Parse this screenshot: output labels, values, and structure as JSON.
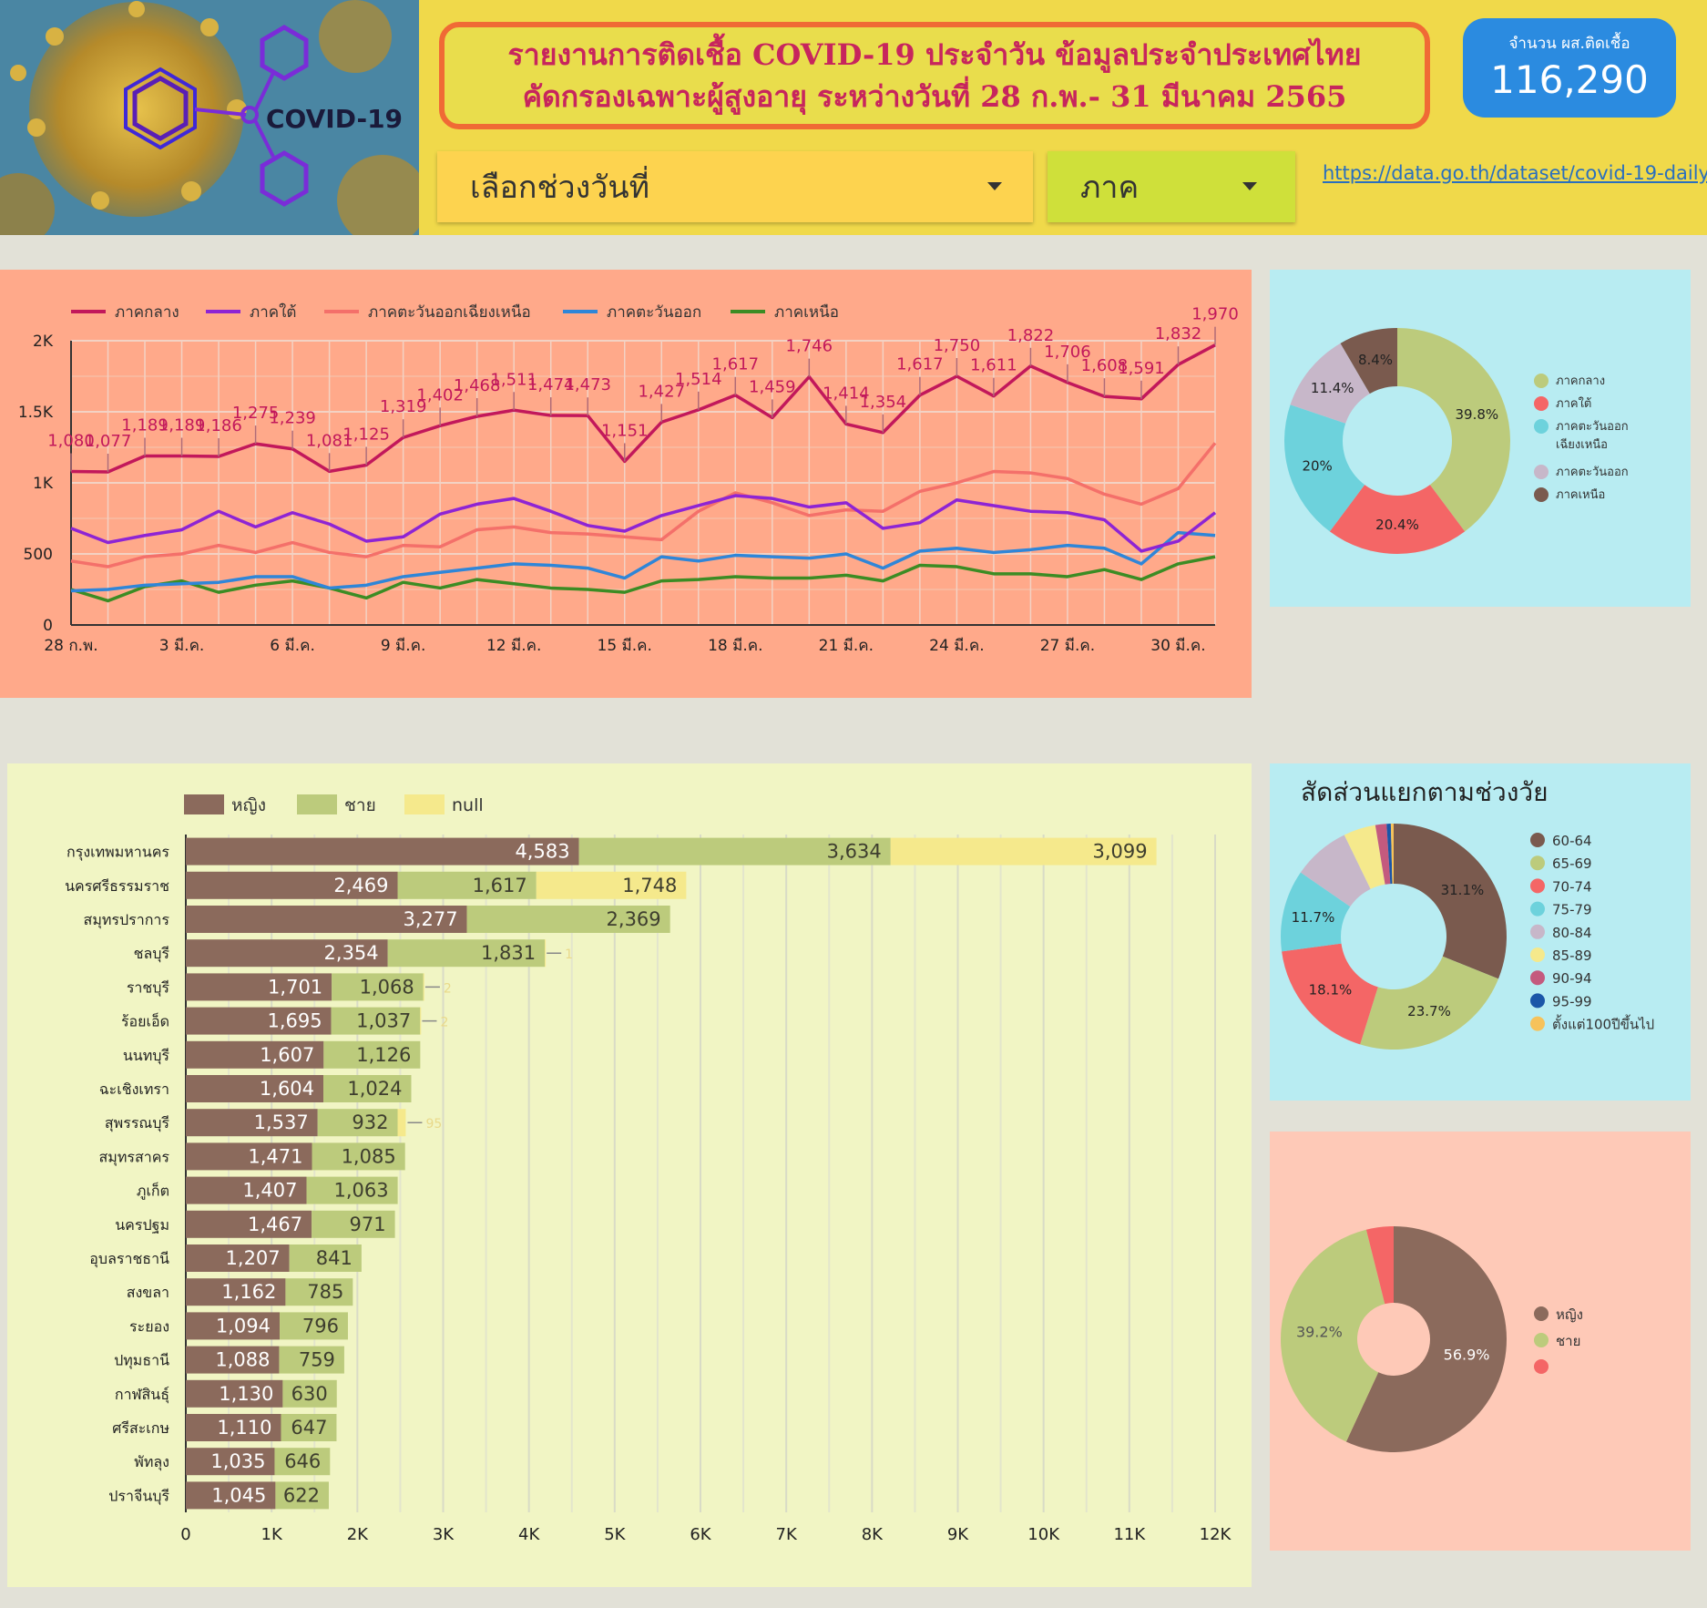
{
  "header": {
    "logo_text": "COVID-19",
    "title_line1": "รายงานการติดเชื้อ COVID-19 ประจำวัน ข้อมูลประจำประเทศไทย",
    "title_line2": "คัดกรองเฉพาะผู้สูงอายุ ระหว่างวันที่ 28 ก.พ.- 31 มีนาคม 2565",
    "count_label": "จำนวน ผส.ติดเชื้อ",
    "count_value": "116,290",
    "date_dropdown": "เลือกช่วงวันที่",
    "region_dropdown": "ภาค",
    "link": "https://data.go.th/dataset/covid-19-daily"
  },
  "colors": {
    "central": "#c2185b",
    "south": "#8e24d4",
    "northeast": "#f4706a",
    "east": "#2f86d8",
    "north": "#3c8c24",
    "female": "#8b6a5c",
    "male": "#bccb7c",
    "null": "#f5e98c"
  },
  "line_chart": {
    "type": "line",
    "legend": [
      "ภาคกลาง",
      "ภาคใต้",
      "ภาคตะวันออกเฉียงเหนือ",
      "ภาคตะวันออก",
      "ภาคเหนือ"
    ],
    "y_ticks": [
      "0",
      "500",
      "1K",
      "1.5K",
      "2K"
    ],
    "ylim": [
      0,
      2000
    ],
    "x_ticks": [
      "28 ก.พ.",
      "3 มี.ค.",
      "6 มี.ค.",
      "9 มี.ค.",
      "12 มี.ค.",
      "15 มี.ค.",
      "18 มี.ค.",
      "21 มี.ค.",
      "24 มี.ค.",
      "27 มี.ค.",
      "30 มี.ค."
    ],
    "series": [
      {
        "name": "ภาคกลาง",
        "values": [
          1080,
          1077,
          1189,
          1189,
          1186,
          1275,
          1239,
          1081,
          1125,
          1319,
          1402,
          1468,
          1511,
          1474,
          1473,
          1151,
          1427,
          1514,
          1617,
          1459,
          1746,
          1414,
          1354,
          1617,
          1750,
          1611,
          1822,
          1706,
          1608,
          1591,
          1832,
          1970
        ]
      },
      {
        "name": "ภาคใต้",
        "values": [
          680,
          580,
          630,
          670,
          800,
          690,
          790,
          710,
          590,
          620,
          780,
          850,
          890,
          800,
          700,
          660,
          770,
          840,
          910,
          890,
          830,
          860,
          680,
          720,
          880,
          840,
          800,
          790,
          740,
          520,
          590,
          790
        ]
      },
      {
        "name": "ภาคตะวันออกเฉียงเหนือ",
        "values": [
          450,
          410,
          480,
          500,
          560,
          510,
          580,
          510,
          480,
          560,
          550,
          670,
          690,
          650,
          640,
          620,
          600,
          800,
          930,
          860,
          770,
          810,
          800,
          940,
          1000,
          1080,
          1070,
          1030,
          920,
          850,
          960,
          1280
        ]
      },
      {
        "name": "ภาคตะวันออก",
        "values": [
          240,
          250,
          280,
          290,
          300,
          340,
          340,
          260,
          280,
          340,
          370,
          400,
          430,
          420,
          400,
          330,
          480,
          450,
          490,
          480,
          470,
          500,
          400,
          520,
          540,
          510,
          530,
          560,
          540,
          430,
          650,
          630
        ]
      },
      {
        "name": "ภาคเหนือ",
        "values": [
          250,
          170,
          270,
          310,
          230,
          280,
          310,
          260,
          190,
          300,
          260,
          320,
          290,
          260,
          250,
          230,
          310,
          320,
          340,
          330,
          330,
          350,
          310,
          420,
          410,
          360,
          360,
          340,
          390,
          320,
          430,
          480
        ]
      }
    ]
  },
  "region_pie": {
    "type": "pie",
    "labels": [
      "ภาคกลาง",
      "ภาคใต้",
      "ภาคตะวันออกเฉียงเหนือ",
      "ภาคตะวันออก",
      "ภาคเหนือ"
    ],
    "values": [
      39.8,
      20.4,
      20.0,
      11.4,
      8.4
    ],
    "pct_labels": [
      "39.8%",
      "20.4%",
      "20%",
      "11.4%",
      "8.4%"
    ],
    "colors": [
      "#bccb7c",
      "#f46666",
      "#6dd2dc",
      "#c7b7c9",
      "#7a5a4e"
    ]
  },
  "bar_chart": {
    "type": "bar",
    "legend": [
      "หญิง",
      "ชาย",
      "null"
    ],
    "x_ticks": [
      "0",
      "1K",
      "2K",
      "3K",
      "4K",
      "5K",
      "6K",
      "7K",
      "8K",
      "9K",
      "10K",
      "11K",
      "12K"
    ],
    "xlim": [
      0,
      12000
    ],
    "categories": [
      "กรุงเทพมหานคร",
      "นครศรีธรรมราช",
      "สมุทรปราการ",
      "ชลบุรี",
      "ราชบุรี",
      "ร้อยเอ็ด",
      "นนทบุรี",
      "ฉะเชิงเทรา",
      "สุพรรณบุรี",
      "สมุทรสาคร",
      "ภูเก็ต",
      "นครปฐม",
      "อุบลราชธานี",
      "สงขลา",
      "ระยอง",
      "ปทุมธานี",
      "กาฬสินธุ์",
      "ศรีสะเกษ",
      "พัทลุง",
      "ปราจีนบุรี"
    ],
    "series": [
      {
        "name": "หญิง",
        "values": [
          4583,
          2469,
          3277,
          2354,
          1701,
          1695,
          1607,
          1604,
          1537,
          1471,
          1407,
          1467,
          1207,
          1162,
          1094,
          1088,
          1130,
          1110,
          1035,
          1045
        ]
      },
      {
        "name": "ชาย",
        "values": [
          3634,
          1617,
          2369,
          1831,
          1068,
          1037,
          1126,
          1024,
          932,
          1085,
          1063,
          971,
          841,
          785,
          796,
          759,
          630,
          647,
          646,
          622
        ]
      },
      {
        "name": "null",
        "values": [
          3099,
          1748,
          null,
          1,
          2,
          2,
          null,
          null,
          95,
          null,
          null,
          null,
          null,
          null,
          null,
          null,
          null,
          null,
          null,
          null
        ]
      }
    ]
  },
  "age_pie": {
    "type": "pie",
    "title": "สัดส่วนแยกตามช่วงวัย",
    "labels": [
      "60-64",
      "65-69",
      "70-74",
      "75-79",
      "80-84",
      "85-89",
      "90-94",
      "95-99",
      "ตั้งแต่100ปีขึ้นไป"
    ],
    "values": [
      31.1,
      23.7,
      18.1,
      11.7,
      8.2,
      4.6,
      1.6,
      0.6,
      0.4
    ],
    "pct_labels": [
      "31.1%",
      "23.7%",
      "18.1%",
      "11.7%",
      "",
      "",
      "",
      "",
      ""
    ],
    "colors": [
      "#7a5a4e",
      "#bccb7c",
      "#f46666",
      "#6dd2dc",
      "#c7b7c9",
      "#f5e98c",
      "#c45a7e",
      "#1b56a8",
      "#f6c25a"
    ]
  },
  "gender_pie": {
    "type": "pie",
    "labels": [
      "หญิง",
      "ชาย",
      ""
    ],
    "values": [
      56.9,
      39.2,
      3.9
    ],
    "pct_labels": [
      "56.9%",
      "39.2%",
      ""
    ],
    "colors": [
      "#8b6a5c",
      "#bccb7c",
      "#f46666"
    ]
  }
}
